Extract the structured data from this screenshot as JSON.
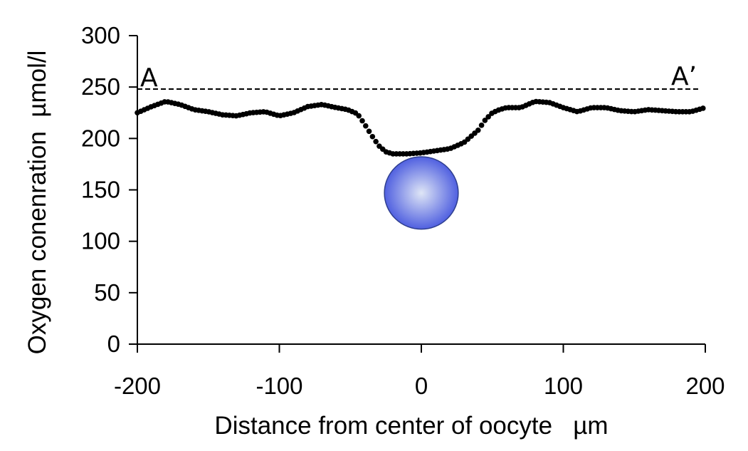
{
  "chart_data": {
    "type": "scatter",
    "title": "",
    "xlabel": "Distance from center of oocyte   µm",
    "ylabel": "Oxygen conenration  µmol/l",
    "xlim": [
      -200,
      200
    ],
    "ylim": [
      0,
      300
    ],
    "x_ticks": [
      "-200",
      "-100",
      "0",
      "100",
      "200"
    ],
    "y_ticks": [
      "0",
      "50",
      "100",
      "150",
      "200",
      "250",
      "300"
    ],
    "grid": false,
    "legend": "none",
    "series": [
      {
        "color": "#000000",
        "marker": "filled-circle",
        "profile": [
          [
            -200,
            225
          ],
          [
            -190,
            231
          ],
          [
            -180,
            236
          ],
          [
            -170,
            233
          ],
          [
            -160,
            228
          ],
          [
            -150,
            226
          ],
          [
            -140,
            223
          ],
          [
            -130,
            222
          ],
          [
            -120,
            225
          ],
          [
            -110,
            226
          ],
          [
            -100,
            222
          ],
          [
            -90,
            225
          ],
          [
            -80,
            231
          ],
          [
            -70,
            233
          ],
          [
            -60,
            230
          ],
          [
            -52,
            228
          ],
          [
            -45,
            224
          ],
          [
            -40,
            214
          ],
          [
            -35,
            203
          ],
          [
            -30,
            193
          ],
          [
            -25,
            187
          ],
          [
            -20,
            185
          ],
          [
            -10,
            185
          ],
          [
            0,
            186
          ],
          [
            10,
            188
          ],
          [
            20,
            190
          ],
          [
            30,
            196
          ],
          [
            40,
            208
          ],
          [
            45,
            218
          ],
          [
            50,
            225
          ],
          [
            55,
            228
          ],
          [
            60,
            230
          ],
          [
            70,
            230
          ],
          [
            80,
            236
          ],
          [
            90,
            235
          ],
          [
            100,
            230
          ],
          [
            110,
            226
          ],
          [
            120,
            230
          ],
          [
            130,
            230
          ],
          [
            140,
            227
          ],
          [
            150,
            226
          ],
          [
            160,
            228
          ],
          [
            170,
            227
          ],
          [
            180,
            226
          ],
          [
            190,
            226
          ],
          [
            200,
            230
          ]
        ]
      }
    ],
    "reference_line": {
      "y": 248,
      "x_range": [
        -200,
        195
      ],
      "style": "dashed",
      "start_label": "A",
      "end_label": "A’"
    },
    "marker_circle": {
      "x": 0,
      "y": 147,
      "radius_x_units": 26,
      "fill_center": "#dfe6f6",
      "fill_edge": "#5060e0",
      "stroke": "#2f3f8f"
    }
  }
}
